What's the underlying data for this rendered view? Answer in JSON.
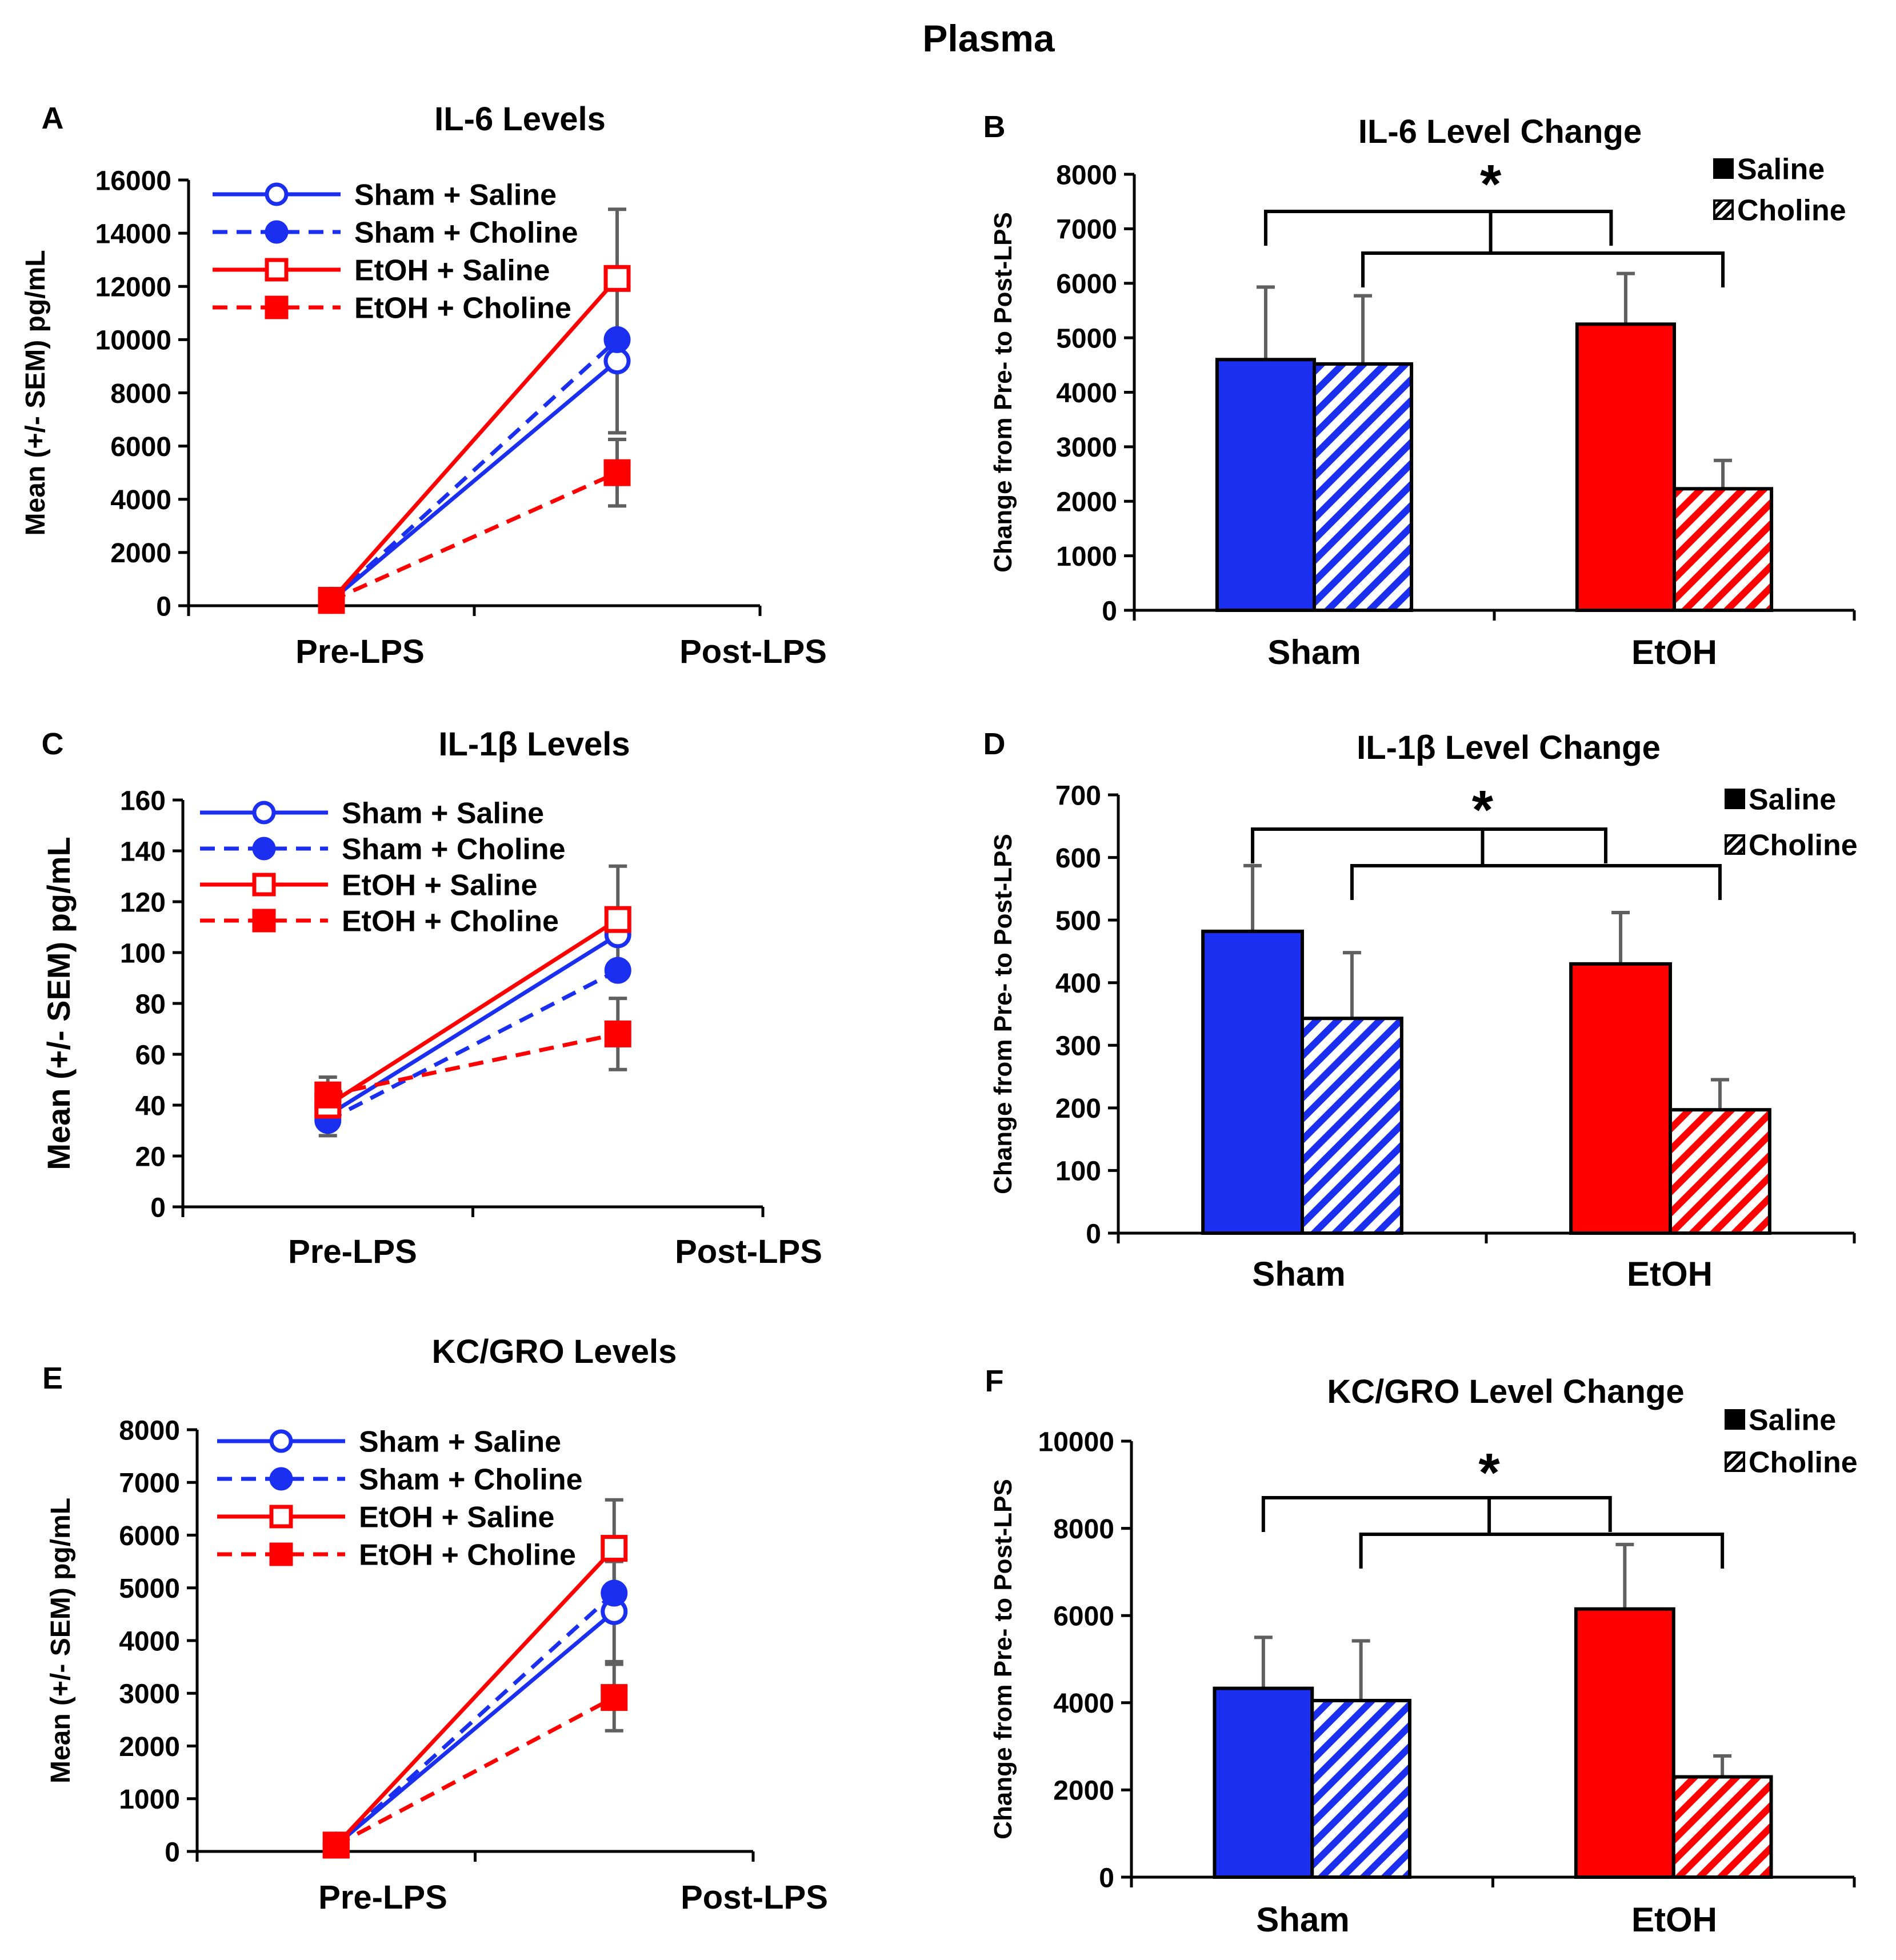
{
  "figure_title": "Plasma",
  "colors": {
    "sham": "#1a2ff0",
    "etoh": "#ff0000",
    "axis": "#000000",
    "error_bar": "#606060"
  },
  "chart_data": [
    {
      "panel": "A",
      "type": "line",
      "title": "IL-6 Levels",
      "ylabel": "Mean (+/- SEM) pg/mL",
      "xlabel": "",
      "categories": [
        "Pre-LPS",
        "Post-LPS"
      ],
      "ylim": [
        0,
        16000
      ],
      "yticks": [
        "0",
        "2000",
        "4000",
        "6000",
        "8000",
        "10000",
        "12000",
        "14000",
        "16000"
      ],
      "legend_position": "top-left",
      "series": [
        {
          "name": "Sham + Saline",
          "group": "sham",
          "style": "solid",
          "marker": "open-circle",
          "values": [
            200,
            9200
          ],
          "errors": [
            0,
            2700
          ]
        },
        {
          "name": "Sham + Choline",
          "group": "sham",
          "style": "dashed",
          "marker": "filled-circle",
          "values": [
            200,
            10000
          ],
          "errors": [
            0,
            0
          ]
        },
        {
          "name": "EtOH + Saline",
          "group": "etoh",
          "style": "solid",
          "marker": "open-square",
          "values": [
            200,
            12300
          ],
          "errors": [
            0,
            2600
          ]
        },
        {
          "name": "EtOH + Choline",
          "group": "etoh",
          "style": "dashed",
          "marker": "filled-square",
          "values": [
            200,
            5000
          ],
          "errors": [
            0,
            1250
          ]
        }
      ]
    },
    {
      "panel": "B",
      "type": "bar",
      "title": "IL-6 Level Change",
      "ylabel": "Change from Pre- to Post-LPS",
      "xlabel": "",
      "categories": [
        "Sham",
        "EtOH"
      ],
      "ylim": [
        0,
        8000
      ],
      "yticks": [
        "0",
        "1000",
        "2000",
        "3000",
        "4000",
        "5000",
        "6000",
        "7000",
        "8000"
      ],
      "legend_position": "top-right",
      "series": [
        {
          "name": "Saline",
          "pattern": "solid",
          "values": [
            4600,
            5250
          ],
          "errors": [
            1330,
            930
          ]
        },
        {
          "name": "Choline",
          "pattern": "hatched",
          "values": [
            4520,
            2230
          ],
          "errors": [
            1250,
            520
          ]
        }
      ],
      "annotation": "*"
    },
    {
      "panel": "C",
      "type": "line",
      "title": "IL-1β Levels",
      "ylabel": "Mean (+/- SEM) pg/mL",
      "xlabel": "",
      "categories": [
        "Pre-LPS",
        "Post-LPS"
      ],
      "ylim": [
        0,
        160
      ],
      "yticks": [
        "0",
        "20",
        "40",
        "60",
        "80",
        "100",
        "120",
        "140",
        "160"
      ],
      "legend_position": "top-left",
      "series": [
        {
          "name": "Sham + Saline",
          "group": "sham",
          "style": "solid",
          "marker": "open-circle",
          "values": [
            36,
            107
          ],
          "errors": [
            0,
            0
          ]
        },
        {
          "name": "Sham + Choline",
          "group": "sham",
          "style": "dashed",
          "marker": "filled-circle",
          "values": [
            34,
            93
          ],
          "errors": [
            6,
            0
          ]
        },
        {
          "name": "EtOH + Saline",
          "group": "etoh",
          "style": "solid",
          "marker": "open-square",
          "values": [
            40,
            113
          ],
          "errors": [
            0,
            21
          ]
        },
        {
          "name": "EtOH + Choline",
          "group": "etoh",
          "style": "dashed",
          "marker": "filled-square",
          "values": [
            44,
            68
          ],
          "errors": [
            7,
            14
          ]
        }
      ]
    },
    {
      "panel": "D",
      "type": "bar",
      "title": "IL-1β Level Change",
      "ylabel": "Change from Pre- to Post-LPS",
      "xlabel": "",
      "categories": [
        "Sham",
        "EtOH"
      ],
      "ylim": [
        0,
        700
      ],
      "yticks": [
        "0",
        "100",
        "200",
        "300",
        "400",
        "500",
        "600",
        "700"
      ],
      "legend_position": "top-right",
      "series": [
        {
          "name": "Saline",
          "pattern": "solid",
          "values": [
            482,
            430
          ],
          "errors": [
            105,
            82
          ]
        },
        {
          "name": "Choline",
          "pattern": "hatched",
          "values": [
            343,
            197
          ],
          "errors": [
            105,
            48
          ]
        }
      ],
      "annotation": "*"
    },
    {
      "panel": "E",
      "type": "line",
      "title": "KC/GRO Levels",
      "ylabel": "Mean (+/- SEM) pg/mL",
      "xlabel": "",
      "categories": [
        "Pre-LPS",
        "Post-LPS"
      ],
      "ylim": [
        0,
        8000
      ],
      "yticks": [
        "0",
        "1000",
        "2000",
        "3000",
        "4000",
        "5000",
        "6000",
        "7000",
        "8000"
      ],
      "legend_position": "top-left",
      "series": [
        {
          "name": "Sham + Saline",
          "group": "sham",
          "style": "solid",
          "marker": "open-circle",
          "values": [
            120,
            4550
          ],
          "errors": [
            0,
            950
          ]
        },
        {
          "name": "Sham + Choline",
          "group": "sham",
          "style": "dashed",
          "marker": "filled-circle",
          "values": [
            120,
            4900
          ],
          "errors": [
            0,
            0
          ]
        },
        {
          "name": "EtOH + Saline",
          "group": "etoh",
          "style": "solid",
          "marker": "open-square",
          "values": [
            120,
            5750
          ],
          "errors": [
            0,
            920
          ]
        },
        {
          "name": "EtOH + Choline",
          "group": "etoh",
          "style": "dashed",
          "marker": "filled-square",
          "values": [
            120,
            2920
          ],
          "errors": [
            0,
            630
          ]
        }
      ]
    },
    {
      "panel": "F",
      "type": "bar",
      "title": "KC/GRO Level Change",
      "ylabel": "Change from Pre- to Post-LPS",
      "xlabel": "",
      "categories": [
        "Sham",
        "EtOH"
      ],
      "ylim": [
        0,
        10000
      ],
      "yticks": [
        "0",
        "2000",
        "4000",
        "6000",
        "8000",
        "10000"
      ],
      "legend_position": "top-right",
      "series": [
        {
          "name": "Saline",
          "pattern": "solid",
          "values": [
            4330,
            6150
          ],
          "errors": [
            1170,
            1480
          ]
        },
        {
          "name": "Choline",
          "pattern": "hatched",
          "values": [
            4050,
            2300
          ],
          "errors": [
            1370,
            480
          ]
        }
      ],
      "annotation": "*"
    }
  ]
}
